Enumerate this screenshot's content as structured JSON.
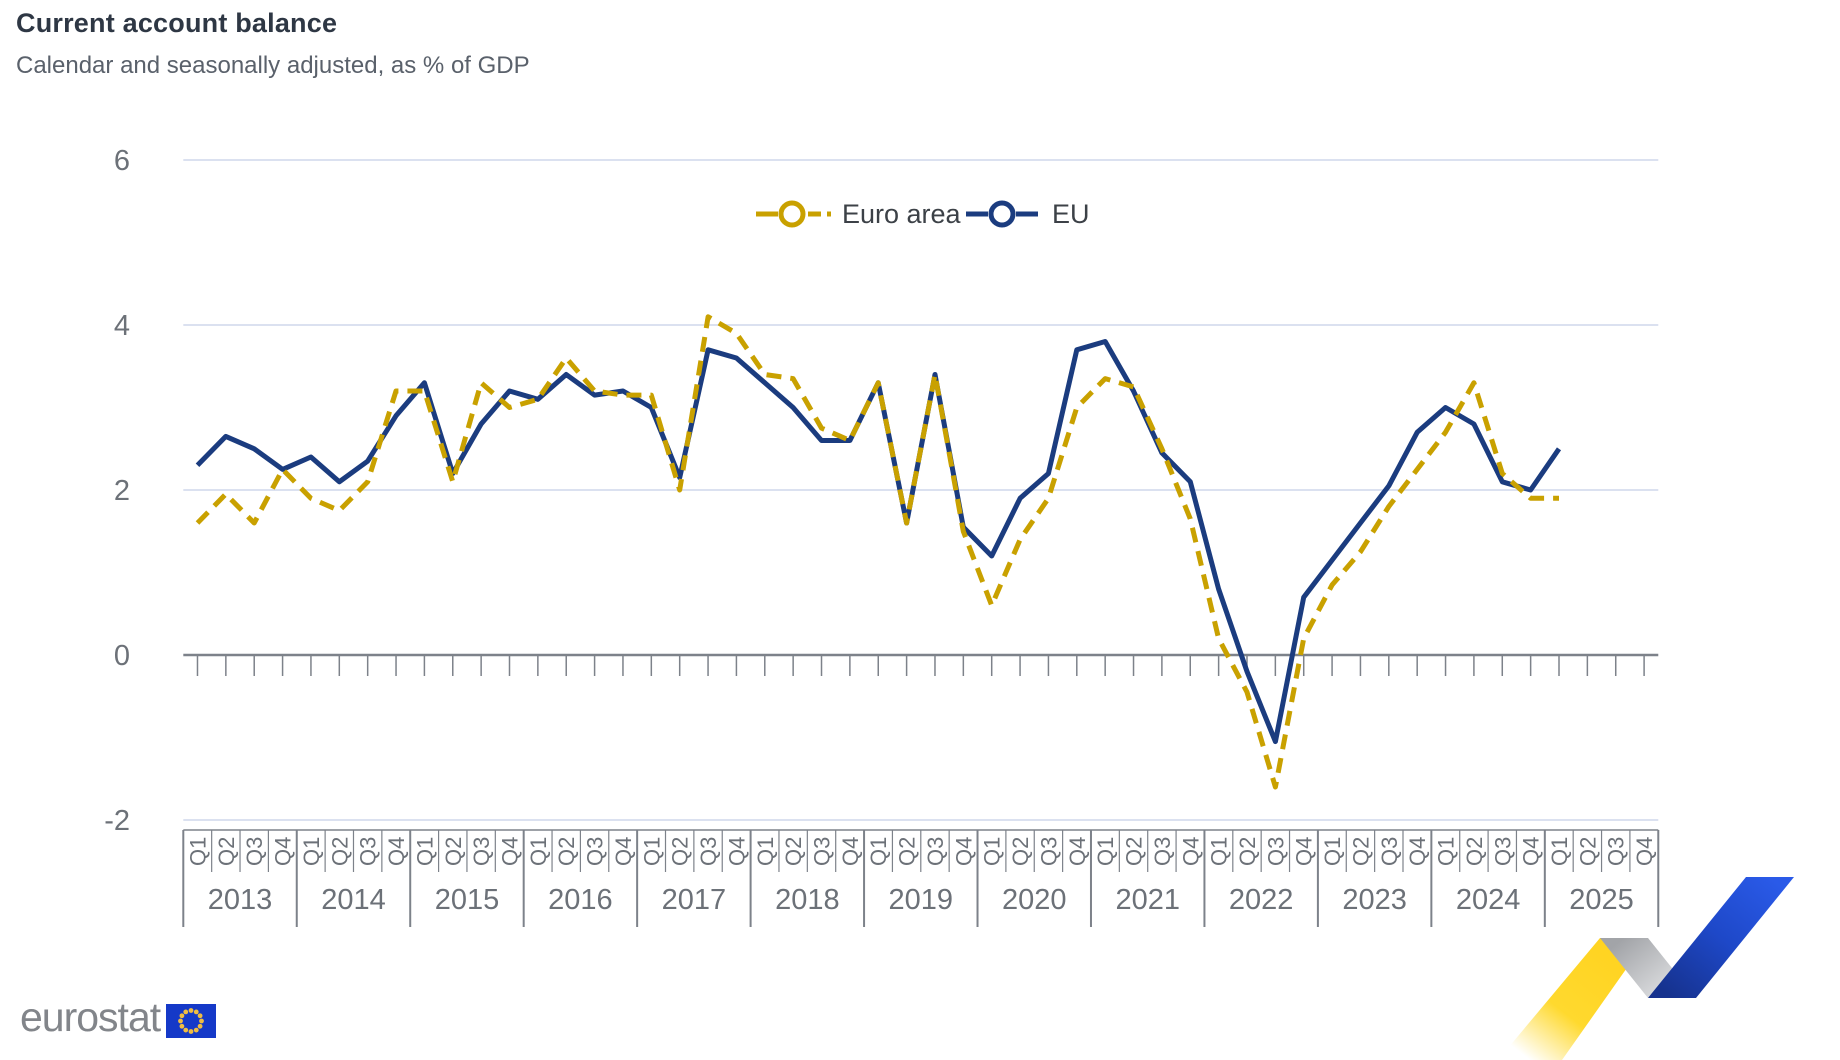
{
  "header": {
    "title": "Current account balance",
    "subtitle": "Calendar and seasonally adjusted, as % of GDP"
  },
  "logo": {
    "text": "eurostat"
  },
  "chart_data": {
    "type": "line",
    "title": "Current account balance",
    "subtitle": "Calendar and seasonally adjusted, as % of GDP",
    "grid": "horizontal",
    "legend_position": "top-center",
    "y_ticks": [
      -2,
      0,
      2,
      4,
      6
    ],
    "ylim": [
      -2,
      6
    ],
    "years": [
      2013,
      2014,
      2015,
      2016,
      2017,
      2018,
      2019,
      2020,
      2021,
      2022,
      2023,
      2024,
      2025
    ],
    "quarter_labels": [
      "Q1",
      "Q2",
      "Q3",
      "Q4"
    ],
    "x_axis_note": "quarterly cells 2013Q1-2025Q4; data plotted through 2025Q1",
    "series": [
      {
        "name": "Euro area",
        "color": "#C9A100",
        "style": "dashed",
        "marker": "open-circle",
        "values": [
          1.6,
          1.95,
          1.6,
          2.25,
          1.9,
          1.75,
          2.1,
          3.2,
          3.2,
          2.1,
          3.3,
          3.0,
          3.1,
          3.6,
          3.2,
          3.15,
          3.15,
          2.0,
          4.1,
          3.9,
          3.4,
          3.35,
          2.75,
          2.6,
          3.3,
          1.6,
          3.4,
          1.5,
          0.6,
          1.4,
          1.9,
          3.0,
          3.35,
          3.25,
          2.5,
          1.65,
          0.2,
          -0.45,
          -1.6,
          0.2,
          0.85,
          1.25,
          1.8,
          2.25,
          2.7,
          3.3,
          2.2,
          1.9,
          1.9
        ]
      },
      {
        "name": "EU",
        "color": "#1B3C7F",
        "style": "solid",
        "marker": "open-circle",
        "values": [
          2.3,
          2.65,
          2.5,
          2.25,
          2.4,
          2.1,
          2.35,
          2.9,
          3.3,
          2.2,
          2.8,
          3.2,
          3.1,
          3.4,
          3.15,
          3.2,
          3.0,
          2.15,
          3.7,
          3.6,
          3.3,
          3.0,
          2.6,
          2.6,
          3.3,
          1.6,
          3.4,
          1.55,
          1.2,
          1.9,
          2.2,
          3.7,
          3.8,
          3.2,
          2.45,
          2.1,
          0.8,
          -0.2,
          -1.05,
          0.7,
          1.15,
          1.6,
          2.05,
          2.7,
          3.0,
          2.8,
          2.1,
          2.0,
          2.5
        ]
      }
    ],
    "colors": {
      "gridline": "#dbe1f0",
      "axis": "#7d828a",
      "tick_label": "#6c7178",
      "legend_text": "#3c4147"
    }
  },
  "branding": {
    "flag_blue": "#1539c8",
    "star_yellow": "#f0bd42",
    "swoosh": {
      "yellow": "#FFD21E",
      "gray_dark": "#a2a4a8",
      "gray_light": "#e3e4e6",
      "blue_dark": "#16328e",
      "blue_bright": "#2a5ae8"
    }
  }
}
